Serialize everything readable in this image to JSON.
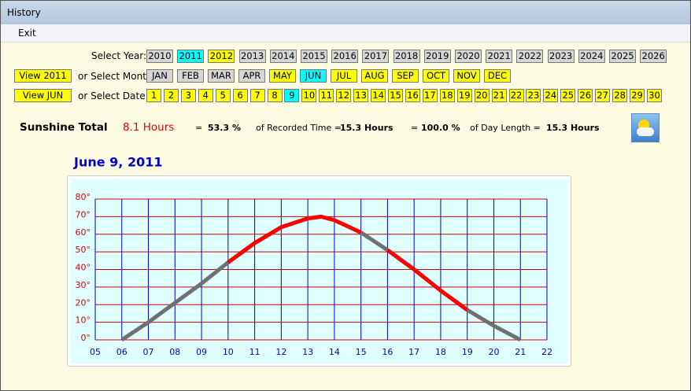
{
  "window": {
    "title": "History",
    "menu": "Exit"
  },
  "selectors": {
    "year_label": "Select Year:",
    "years": [
      {
        "label": "2010",
        "color": "#d6d6d6"
      },
      {
        "label": "2011",
        "color": "#00ffff"
      },
      {
        "label": "2012",
        "color": "#ffff00"
      },
      {
        "label": "2013",
        "color": "#d6d6d6"
      },
      {
        "label": "2014",
        "color": "#d6d6d6"
      },
      {
        "label": "2015",
        "color": "#d6d6d6"
      },
      {
        "label": "2016",
        "color": "#d6d6d6"
      },
      {
        "label": "2017",
        "color": "#d6d6d6"
      },
      {
        "label": "2018",
        "color": "#d6d6d6"
      },
      {
        "label": "2019",
        "color": "#d6d6d6"
      },
      {
        "label": "2020",
        "color": "#d6d6d6"
      },
      {
        "label": "2021",
        "color": "#d6d6d6"
      },
      {
        "label": "2022",
        "color": "#d6d6d6"
      },
      {
        "label": "2023",
        "color": "#d6d6d6"
      },
      {
        "label": "2024",
        "color": "#d6d6d6"
      },
      {
        "label": "2025",
        "color": "#d6d6d6"
      },
      {
        "label": "2026",
        "color": "#d6d6d6"
      }
    ],
    "view_year": "View 2011",
    "month_label": "or Select Month:",
    "months": [
      {
        "label": "JAN",
        "color": "#d6d6d6"
      },
      {
        "label": "FEB",
        "color": "#d6d6d6"
      },
      {
        "label": "MAR",
        "color": "#d6d6d6"
      },
      {
        "label": "APR",
        "color": "#d6d6d6"
      },
      {
        "label": "MAY",
        "color": "#ffff00"
      },
      {
        "label": "JUN",
        "color": "#00ffff"
      },
      {
        "label": "JUL",
        "color": "#ffff00"
      },
      {
        "label": "AUG",
        "color": "#ffff00"
      },
      {
        "label": "SEP",
        "color": "#ffff00"
      },
      {
        "label": "OCT",
        "color": "#ffff00"
      },
      {
        "label": "NOV",
        "color": "#ffff00"
      },
      {
        "label": "DEC",
        "color": "#ffff00"
      }
    ],
    "view_month": "View JUN",
    "date_label": "or Select Date:",
    "dates": {
      "labels": [
        "1",
        "2",
        "3",
        "4",
        "5",
        "6",
        "7",
        "8",
        "9",
        "10",
        "11",
        "12",
        "13",
        "14",
        "15",
        "16",
        "17",
        "18",
        "19",
        "20",
        "21",
        "22",
        "23",
        "24",
        "25",
        "26",
        "27",
        "28",
        "29",
        "30"
      ],
      "color": "#ffff00",
      "selected": "9",
      "selected_color": "#00ffff"
    }
  },
  "summary": {
    "title": "Sunshine Total",
    "hours": "8.1 Hours",
    "eq1": "=",
    "pct1": "53.3 %",
    "of1": "of Recorded Time =",
    "val1": "15.3 Hours",
    "eq2": "=",
    "pct2": "100.0 %",
    "of2": "of Day Length =",
    "val2": "15.3 Hours"
  },
  "chart_data": {
    "type": "line",
    "title": "June 9, 2011",
    "x": [
      6,
      7,
      8,
      9,
      10,
      11,
      12,
      13,
      13.5,
      14,
      15,
      15.5,
      16,
      17,
      18,
      19,
      20,
      21
    ],
    "series": [
      {
        "color": "#707070",
        "values": [
          0,
          10,
          21,
          32,
          44,
          55,
          64,
          69,
          70,
          68,
          61,
          56,
          51,
          40,
          28,
          17,
          8,
          0
        ]
      },
      {
        "color": "#ff0000",
        "values": [
          null,
          null,
          null,
          null,
          44,
          55,
          64,
          69,
          70,
          68,
          61,
          null,
          51,
          40,
          28,
          17,
          null,
          null
        ]
      }
    ],
    "xlim": [
      5,
      22
    ],
    "ylim": [
      0,
      80
    ],
    "xticks": [
      {
        "value": 5,
        "label": "05"
      },
      {
        "value": 6,
        "label": "06"
      },
      {
        "value": 7,
        "label": "07"
      },
      {
        "value": 8,
        "label": "08"
      },
      {
        "value": 9,
        "label": "09"
      },
      10,
      11,
      12,
      13,
      14,
      15,
      16,
      17,
      18,
      19,
      20,
      21,
      22
    ],
    "yticks": [
      {
        "value": 0,
        "label": "0°"
      },
      {
        "value": 10,
        "label": "10°"
      },
      {
        "value": 20,
        "label": "20°"
      },
      {
        "value": 30,
        "label": "30°"
      },
      {
        "value": 40,
        "label": "40°"
      },
      {
        "value": 50,
        "label": "50°"
      },
      {
        "value": 60,
        "label": "60°"
      },
      {
        "value": 70,
        "label": "70°"
      },
      {
        "value": 80,
        "label": "80°"
      }
    ],
    "grid": true,
    "xgrid_color": "#0000cc",
    "ygrid_color": "#cc0000"
  }
}
